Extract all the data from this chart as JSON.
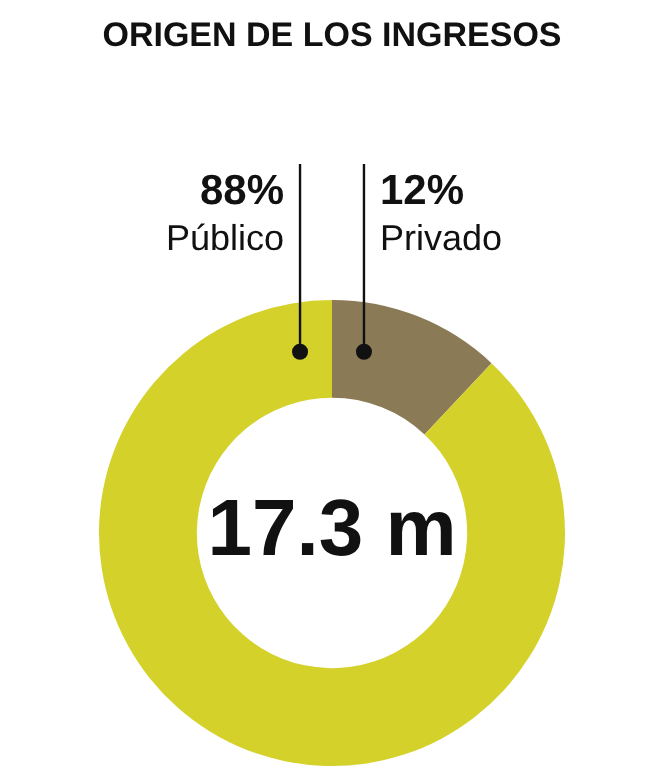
{
  "chart_data": {
    "type": "donut",
    "title": "ORIGEN DE LOS INGRESOS",
    "categories": [
      "Privado",
      "Público"
    ],
    "values": [
      12,
      88
    ],
    "value_labels": [
      "12%",
      "88%"
    ],
    "colors": [
      "#8a7a55",
      "#d4d12a"
    ],
    "annotations": [
      "17.3 m"
    ],
    "legend": false
  }
}
